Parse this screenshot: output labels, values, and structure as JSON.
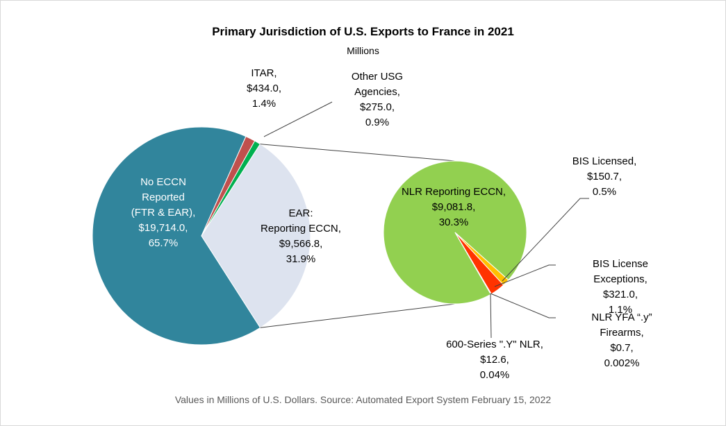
{
  "chart_data": {
    "type": "pie-of-pie",
    "title": "Primary Jurisdiction of U.S. Exports to France in 2021",
    "subtitle": "Millions",
    "footnote": "Values in Millions of U.S. Dollars.  Source: Automated Export System February 15, 2022",
    "slices": [
      {
        "name": "No ECCN\nReported\n(FTR & EAR),",
        "value": 19714.0,
        "value_label": "$19,714.0,",
        "percent": 65.7,
        "percent_label": "65.7%",
        "color": "#31859c"
      },
      {
        "name": "ITAR,",
        "value": 434.0,
        "value_label": "$434.0,",
        "percent": 1.4,
        "percent_label": "1.4%",
        "color": "#c0504d"
      },
      {
        "name": "Other USG\nAgencies,",
        "value": 275.0,
        "value_label": "$275.0,",
        "percent": 0.9,
        "percent_label": "0.9%",
        "color": "#00b050"
      },
      {
        "name": "EAR:\nReporting ECCN,",
        "value": 9566.8,
        "value_label": "$9,566.8,",
        "percent": 31.9,
        "percent_label": "31.9%",
        "color": "#dde3ef"
      }
    ],
    "secondary_slices": [
      {
        "name": "NLR Reporting ECCN,",
        "value": 9081.8,
        "value_label": "$9,081.8,",
        "percent": 30.3,
        "percent_label": "30.3%",
        "color": "#92d050"
      },
      {
        "name": "BIS Licensed,",
        "value": 150.7,
        "value_label": "$150.7,",
        "percent": 0.5,
        "percent_label": "0.5%",
        "color": "#ffc000"
      },
      {
        "name": "BIS License Exceptions,",
        "value": 321.0,
        "value_label": "$321.0,",
        "percent": 1.1,
        "percent_label": "1.1%",
        "color": "#ff3300"
      },
      {
        "name": "NLR YFA “.y” Firearms,",
        "value": 0.7,
        "value_label": "$0.7,",
        "percent": 0.002,
        "percent_label": "0.002%",
        "color": "#c00000"
      },
      {
        "name": "600-Series \".Y\" NLR,",
        "value": 12.6,
        "value_label": "$12.6,",
        "percent": 0.04,
        "percent_label": "0.04%",
        "color": "#7f0000"
      }
    ]
  }
}
